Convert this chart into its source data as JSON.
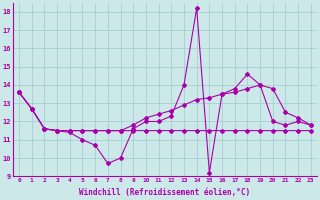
{
  "xlabel": "Windchill (Refroidissement éolien,°C)",
  "background_color": "#cce8e8",
  "line_color": "#aa00aa",
  "xlim": [
    -0.5,
    23.5
  ],
  "ylim": [
    9,
    18.5
  ],
  "yticks": [
    9,
    10,
    11,
    12,
    13,
    14,
    15,
    16,
    17,
    18
  ],
  "xticks": [
    0,
    1,
    2,
    3,
    4,
    5,
    6,
    7,
    8,
    9,
    10,
    11,
    12,
    13,
    14,
    15,
    16,
    17,
    18,
    19,
    20,
    21,
    22,
    23
  ],
  "series_spike_x": [
    0,
    1,
    2,
    3,
    4,
    5,
    6,
    7,
    8,
    9,
    10,
    11,
    12,
    13,
    14,
    15,
    16,
    17,
    18,
    19,
    20,
    21,
    22,
    23
  ],
  "series_spike_y": [
    13.6,
    12.7,
    11.6,
    11.5,
    11.4,
    11.0,
    10.7,
    9.7,
    10.0,
    11.6,
    12.0,
    12.0,
    12.3,
    14.0,
    18.2,
    9.2,
    13.5,
    13.8,
    14.6,
    14.0,
    12.0,
    11.8,
    12.0,
    11.8
  ],
  "series_trend_x": [
    0,
    1,
    2,
    3,
    4,
    5,
    6,
    7,
    8,
    9,
    10,
    11,
    12,
    13,
    14,
    15,
    16,
    17,
    18,
    19,
    20,
    21,
    22,
    23
  ],
  "series_trend_y": [
    13.6,
    12.7,
    11.6,
    11.5,
    11.5,
    11.5,
    11.5,
    11.5,
    11.5,
    11.8,
    12.2,
    12.4,
    12.6,
    12.9,
    13.2,
    13.3,
    13.5,
    13.6,
    13.8,
    14.0,
    13.8,
    12.5,
    12.2,
    11.8
  ],
  "series_flat_x": [
    0,
    1,
    2,
    3,
    4,
    5,
    6,
    7,
    8,
    9,
    10,
    11,
    12,
    13,
    14,
    15,
    16,
    17,
    18,
    19,
    20,
    21,
    22,
    23
  ],
  "series_flat_y": [
    13.6,
    12.7,
    11.6,
    11.5,
    11.5,
    11.5,
    11.5,
    11.5,
    11.5,
    11.5,
    11.5,
    11.5,
    11.5,
    11.5,
    11.5,
    11.5,
    11.5,
    11.5,
    11.5,
    11.5,
    11.5,
    11.5,
    11.5,
    11.5
  ]
}
